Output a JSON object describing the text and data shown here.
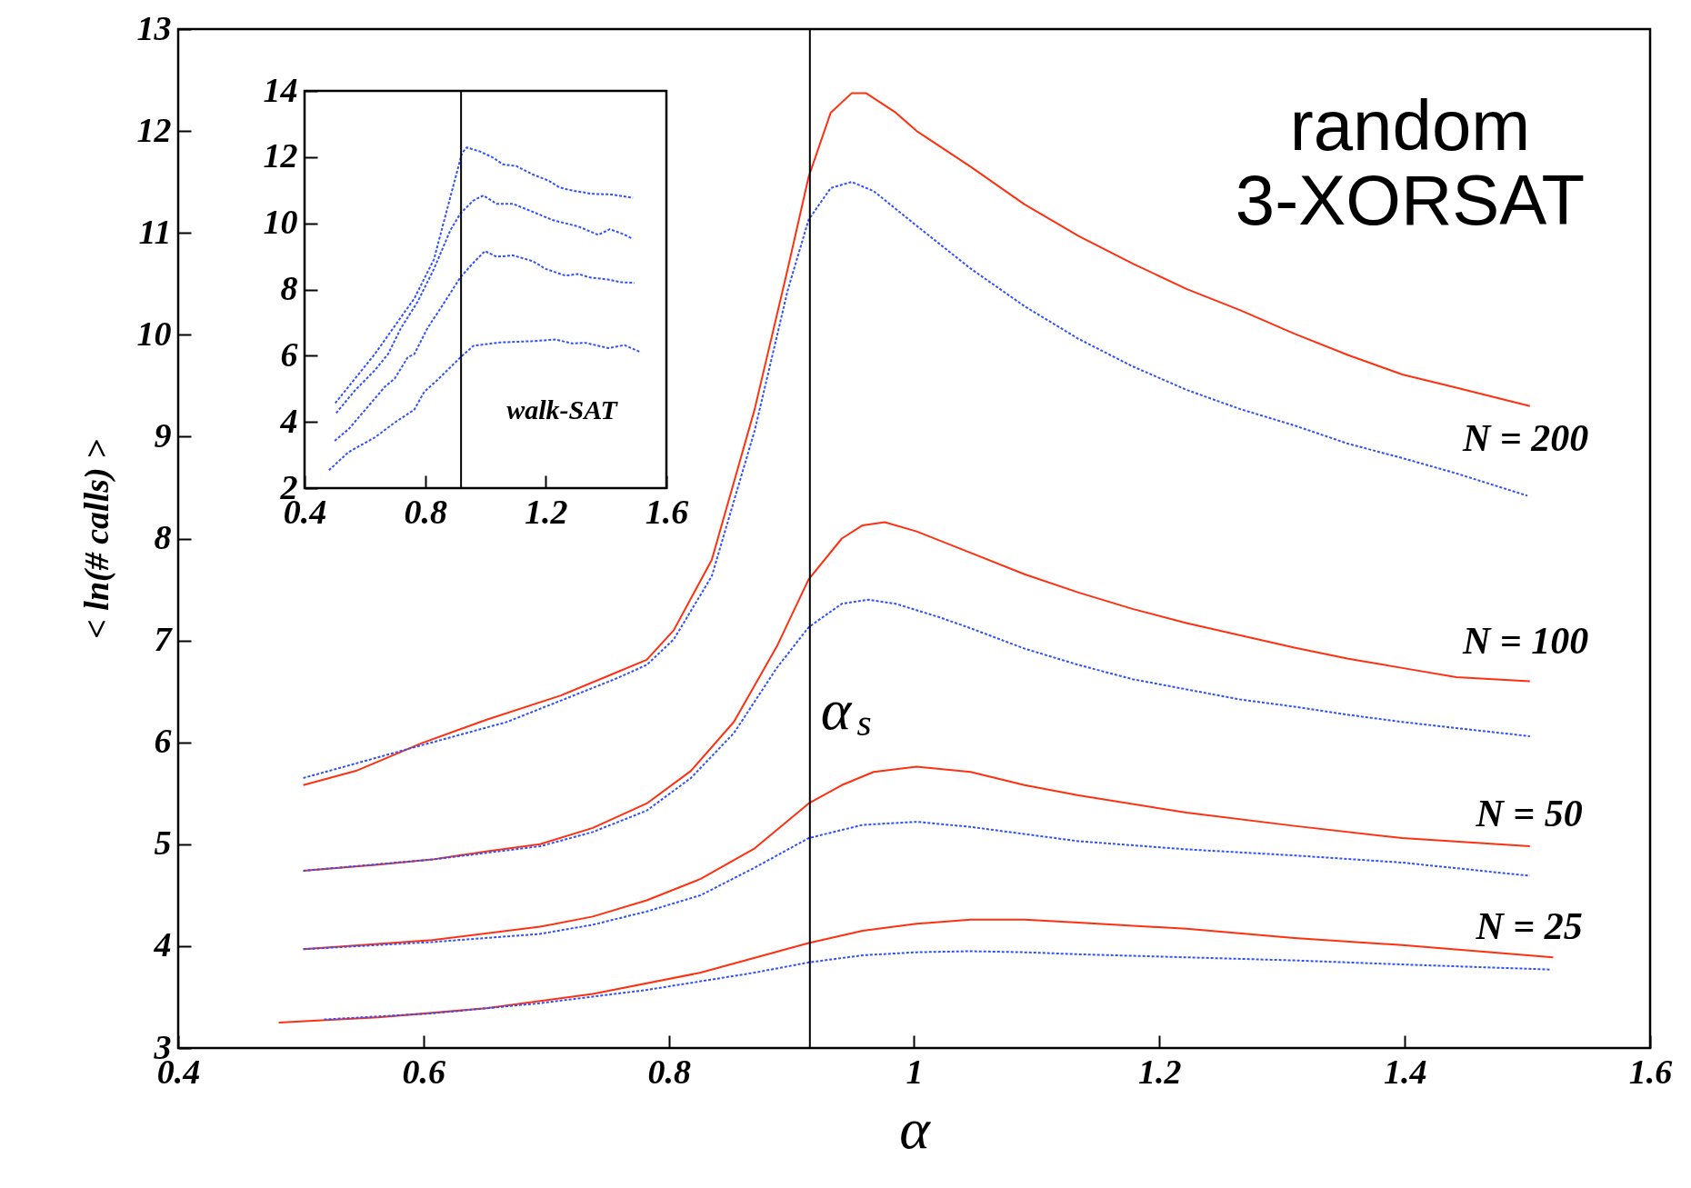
{
  "chart_data": [
    {
      "type": "line",
      "xlabel": "α",
      "ylabel": "< ln(# calls) >",
      "xlim": [
        0.4,
        1.6
      ],
      "ylim": [
        3,
        13
      ],
      "xticks": [
        0.4,
        0.6,
        0.8,
        1,
        1.2,
        1.4,
        1.6
      ],
      "yticks": [
        3,
        4,
        5,
        6,
        7,
        8,
        9,
        10,
        11,
        12,
        13
      ],
      "grid": false,
      "series": [
        {
          "color": "#ff3010",
          "line_style": "solid",
          "x": [
            0.502,
            0.545,
            0.598,
            0.651,
            0.712,
            0.756,
            0.782,
            0.804,
            0.835,
            0.87,
            0.897,
            0.914,
            0.932,
            0.949,
            0.961,
            0.985,
            1.002,
            1.046,
            1.09,
            1.134,
            1.178,
            1.222,
            1.266,
            1.31,
            1.354,
            1.398,
            1.442,
            1.502
          ],
          "values": [
            5.58,
            5.72,
            5.99,
            6.22,
            6.46,
            6.68,
            6.81,
            7.1,
            7.79,
            9.27,
            10.65,
            11.55,
            12.18,
            12.37,
            12.37,
            12.18,
            12.0,
            11.65,
            11.28,
            10.97,
            10.7,
            10.45,
            10.24,
            10.01,
            9.8,
            9.61,
            9.48,
            9.3
          ]
        },
        {
          "color": "#3050ff",
          "line_style": "dashed",
          "x": [
            0.502,
            0.598,
            0.668,
            0.756,
            0.782,
            0.804,
            0.835,
            0.87,
            0.897,
            0.914,
            0.932,
            0.949,
            0.967,
            1.002,
            1.046,
            1.09,
            1.134,
            1.178,
            1.222,
            1.266,
            1.31,
            1.354,
            1.398,
            1.442,
            1.5
          ],
          "values": [
            5.65,
            5.97,
            6.2,
            6.62,
            6.76,
            7.01,
            7.63,
            9.06,
            10.44,
            11.13,
            11.44,
            11.5,
            11.41,
            11.07,
            10.65,
            10.28,
            9.96,
            9.69,
            9.46,
            9.27,
            9.11,
            8.93,
            8.79,
            8.64,
            8.42
          ]
        },
        {
          "color": "#ff3010",
          "line_style": "solid",
          "x": [
            0.502,
            0.563,
            0.607,
            0.651,
            0.695,
            0.738,
            0.782,
            0.818,
            0.853,
            0.888,
            0.914,
            0.941,
            0.958,
            0.976,
            1.002,
            1.046,
            1.09,
            1.134,
            1.178,
            1.222,
            1.266,
            1.31,
            1.354,
            1.398,
            1.442,
            1.502
          ],
          "values": [
            4.74,
            4.8,
            4.85,
            4.93,
            5.0,
            5.16,
            5.4,
            5.72,
            6.2,
            6.94,
            7.6,
            8.0,
            8.13,
            8.16,
            8.07,
            7.86,
            7.65,
            7.47,
            7.31,
            7.17,
            7.05,
            6.93,
            6.82,
            6.73,
            6.64,
            6.6
          ]
        },
        {
          "color": "#3050ff",
          "line_style": "dashed",
          "x": [
            0.502,
            0.607,
            0.695,
            0.738,
            0.782,
            0.818,
            0.853,
            0.888,
            0.914,
            0.941,
            0.963,
            0.985,
            1.02,
            1.046,
            1.09,
            1.134,
            1.178,
            1.222,
            1.266,
            1.31,
            1.354,
            1.398,
            1.442,
            1.502
          ],
          "values": [
            4.74,
            4.85,
            4.98,
            5.12,
            5.33,
            5.65,
            6.09,
            6.73,
            7.13,
            7.36,
            7.4,
            7.36,
            7.23,
            7.12,
            6.92,
            6.76,
            6.62,
            6.52,
            6.42,
            6.35,
            6.27,
            6.2,
            6.14,
            6.06
          ]
        },
        {
          "color": "#ff3010",
          "line_style": "solid",
          "x": [
            0.502,
            0.607,
            0.695,
            0.738,
            0.782,
            0.826,
            0.87,
            0.914,
            0.941,
            0.967,
            1.002,
            1.046,
            1.09,
            1.134,
            1.222,
            1.31,
            1.398,
            1.502
          ],
          "values": [
            3.97,
            4.06,
            4.19,
            4.29,
            4.45,
            4.66,
            4.96,
            5.4,
            5.58,
            5.71,
            5.76,
            5.71,
            5.58,
            5.48,
            5.31,
            5.18,
            5.06,
            4.98
          ]
        },
        {
          "color": "#3050ff",
          "line_style": "dashed",
          "x": [
            0.502,
            0.607,
            0.695,
            0.738,
            0.782,
            0.826,
            0.87,
            0.914,
            0.958,
            1.002,
            1.046,
            1.134,
            1.222,
            1.31,
            1.398,
            1.502
          ],
          "values": [
            3.97,
            4.04,
            4.12,
            4.21,
            4.34,
            4.5,
            4.77,
            5.06,
            5.19,
            5.22,
            5.17,
            5.03,
            4.95,
            4.89,
            4.82,
            4.69
          ]
        },
        {
          "color": "#ff3010",
          "line_style": "solid",
          "x": [
            0.482,
            0.563,
            0.651,
            0.738,
            0.826,
            0.914,
            0.958,
            1.002,
            1.046,
            1.09,
            1.134,
            1.222,
            1.31,
            1.398,
            1.521
          ],
          "values": [
            3.25,
            3.3,
            3.39,
            3.53,
            3.74,
            4.03,
            4.15,
            4.22,
            4.26,
            4.26,
            4.23,
            4.17,
            4.08,
            4.01,
            3.89
          ]
        },
        {
          "color": "#3050ff",
          "line_style": "dashed",
          "x": [
            0.519,
            0.607,
            0.695,
            0.782,
            0.87,
            0.914,
            0.958,
            1.002,
            1.046,
            1.09,
            1.134,
            1.222,
            1.31,
            1.398,
            1.519
          ],
          "values": [
            3.28,
            3.34,
            3.44,
            3.57,
            3.74,
            3.84,
            3.91,
            3.94,
            3.95,
            3.94,
            3.92,
            3.89,
            3.86,
            3.82,
            3.77
          ]
        }
      ],
      "ref_lines": [
        {
          "axis": "x",
          "value": 0.915,
          "label": "α$_{s}$",
          "color": "#000000"
        }
      ],
      "annotations": [
        "random\n3-XORSAT",
        "N = 200",
        "N = 100",
        "N = 50",
        "N = 25"
      ]
    },
    {
      "type": "line",
      "xlim": [
        0.4,
        1.6
      ],
      "ylim": [
        2,
        14
      ],
      "xticks": [
        0.4,
        0.8,
        1.2,
        1.6
      ],
      "yticks": [
        2,
        4,
        6,
        8,
        10,
        12,
        14
      ],
      "grid": false,
      "series": [
        {
          "color": "#3050ff",
          "line_style": "dashed",
          "x": [
            0.502,
            0.633,
            0.764,
            0.829,
            0.895,
            0.922,
            0.938,
            0.982,
            1.026,
            1.058,
            1.102,
            1.156,
            1.211,
            1.244,
            1.276,
            1.353,
            1.418,
            1.489
          ],
          "values": [
            4.57,
            6.05,
            7.73,
            8.91,
            11.19,
            12.12,
            12.29,
            12.17,
            11.98,
            11.78,
            11.73,
            11.48,
            11.28,
            11.09,
            11.01,
            10.89,
            10.87,
            10.77
          ]
        },
        {
          "color": "#3050ff",
          "line_style": "dashed",
          "x": [
            0.505,
            0.568,
            0.633,
            0.677,
            0.72,
            0.775,
            0.829,
            0.884,
            0.917,
            0.96,
            0.993,
            1.037,
            1.091,
            1.156,
            1.222,
            1.309,
            1.374,
            1.412,
            1.45,
            1.489
          ],
          "values": [
            4.27,
            4.96,
            5.56,
            6.05,
            6.84,
            7.63,
            8.62,
            9.8,
            10.3,
            10.69,
            10.84,
            10.59,
            10.59,
            10.35,
            10.1,
            9.9,
            9.65,
            9.82,
            9.7,
            9.53
          ]
        },
        {
          "color": "#3050ff",
          "line_style": "dashed",
          "x": [
            0.5,
            0.546,
            0.611,
            0.666,
            0.699,
            0.742,
            0.764,
            0.808,
            0.851,
            0.917,
            0.96,
            0.998,
            1.037,
            1.091,
            1.156,
            1.2,
            1.265,
            1.309,
            1.342,
            1.407,
            1.45,
            1.494
          ],
          "values": [
            3.43,
            3.78,
            4.47,
            5.06,
            5.31,
            5.95,
            6.05,
            6.84,
            7.43,
            8.37,
            8.81,
            9.16,
            8.99,
            9.03,
            8.86,
            8.62,
            8.42,
            8.47,
            8.37,
            8.3,
            8.22,
            8.2
          ]
        },
        {
          "color": "#3050ff",
          "line_style": "dashed",
          "x": [
            0.481,
            0.546,
            0.633,
            0.699,
            0.764,
            0.797,
            0.84,
            0.917,
            0.96,
            1.047,
            1.156,
            1.233,
            1.287,
            1.331,
            1.407,
            1.461,
            1.516
          ],
          "values": [
            2.54,
            3.09,
            3.53,
            3.98,
            4.37,
            4.91,
            5.26,
            5.95,
            6.3,
            6.4,
            6.44,
            6.49,
            6.37,
            6.39,
            6.23,
            6.32,
            6.1
          ]
        }
      ],
      "ref_lines": [
        {
          "axis": "x",
          "value": 0.919,
          "label": null,
          "color": "#000000"
        }
      ],
      "annotations": [
        "walk-SAT"
      ]
    }
  ]
}
